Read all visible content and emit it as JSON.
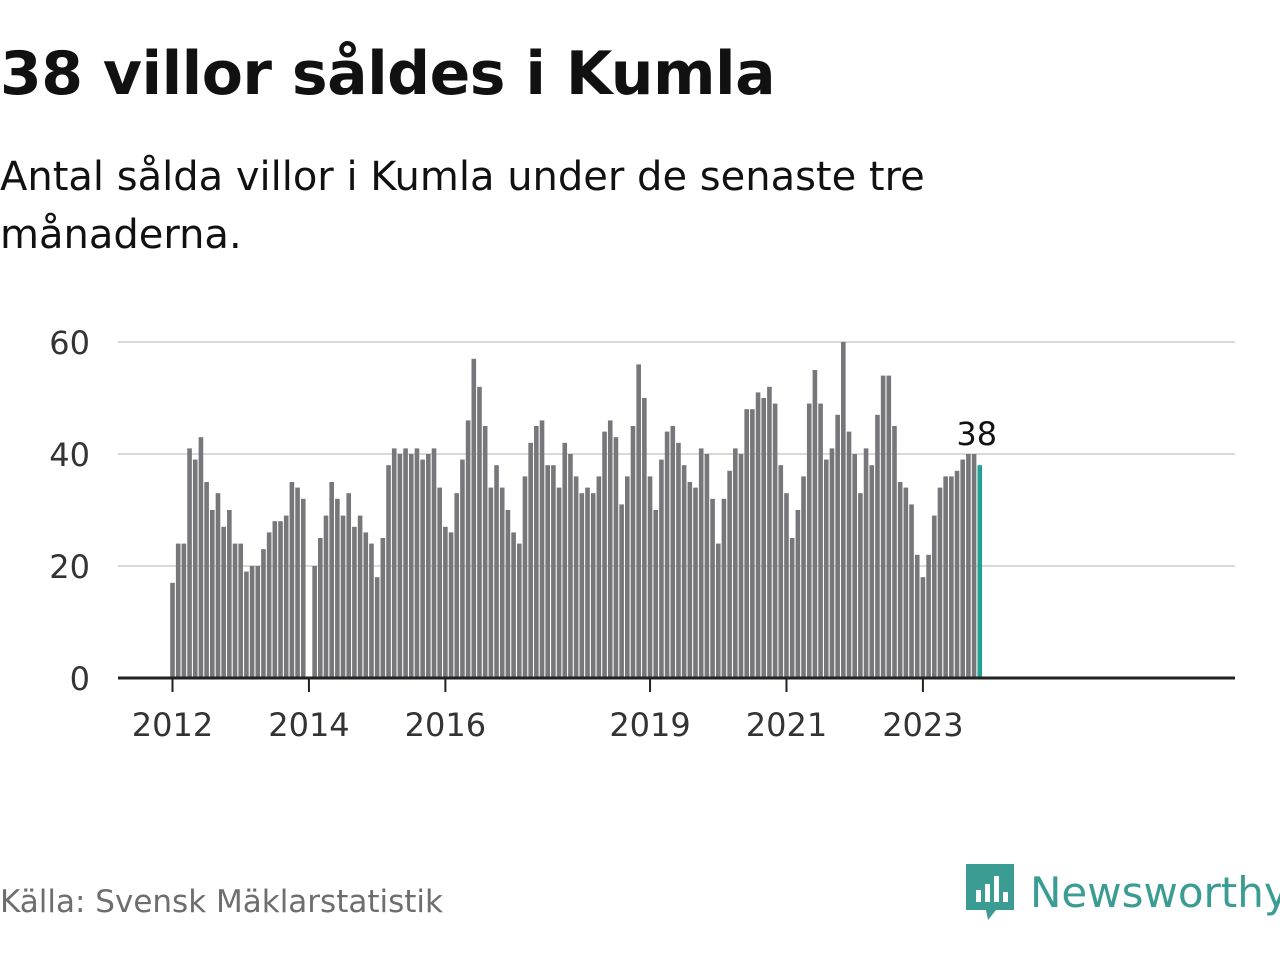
{
  "title": "38 villor såldes i Kumla",
  "subtitle": "Antal sålda villor i Kumla under de senaste tre månaderna.",
  "source": "Källa: Svensk Mäklarstatistik",
  "brand": {
    "name": "Newsworthy",
    "icon": "newsworthy-logo-icon"
  },
  "colors": {
    "bar": "#77767b",
    "highlight": "#21a194",
    "grid": "#d9d9d9",
    "axis": "#222222",
    "brand": "#3a9c93"
  },
  "chart_data": {
    "type": "bar",
    "ylim": [
      0,
      60
    ],
    "yticks": [
      "0",
      "20",
      "40",
      "60"
    ],
    "xticks": [
      "2012",
      "2014",
      "2016",
      "2019",
      "2021",
      "2023"
    ],
    "grid": true,
    "highlight_label": "38",
    "values": [
      17,
      24,
      24,
      41,
      39,
      43,
      35,
      30,
      33,
      27,
      30,
      24,
      24,
      19,
      20,
      20,
      23,
      26,
      28,
      28,
      29,
      35,
      34,
      32,
      20,
      25,
      29,
      35,
      32,
      29,
      33,
      27,
      29,
      26,
      24,
      18,
      25,
      38,
      41,
      40,
      41,
      40,
      41,
      39,
      40,
      41,
      34,
      27,
      26,
      33,
      39,
      46,
      57,
      52,
      45,
      34,
      38,
      34,
      30,
      26,
      24,
      36,
      42,
      45,
      46,
      38,
      38,
      34,
      42,
      40,
      36,
      33,
      34,
      33,
      36,
      44,
      46,
      43,
      31,
      36,
      45,
      56,
      50,
      36,
      30,
      39,
      44,
      45,
      42,
      38,
      35,
      34,
      41,
      40,
      32,
      24,
      32,
      37,
      41,
      40,
      48,
      48,
      51,
      50,
      52,
      49,
      38,
      33,
      25,
      30,
      36,
      49,
      55,
      49,
      39,
      41,
      47,
      60,
      44,
      40,
      33,
      41,
      38,
      47,
      54,
      54,
      45,
      35,
      34,
      31,
      22,
      18,
      22,
      29,
      34,
      36,
      36,
      37,
      39,
      40,
      40,
      38
    ]
  }
}
